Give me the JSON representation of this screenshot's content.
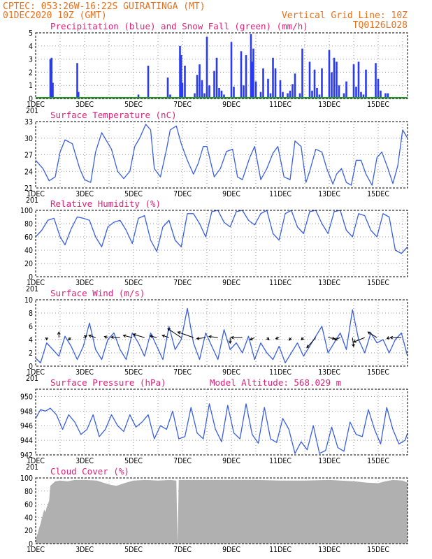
{
  "header": {
    "line1_left": "CPTEC:   053:26W-16:22S   GUIRATINGA (MT)",
    "line2_left": "01DEC2020 10Z (GMT)",
    "line2_right": "Vertical Grid Line: 10Z",
    "line3_right": "TQ0126L028"
  },
  "colors": {
    "header": "#e8701a",
    "panel_title": "#e0207a",
    "line": "#3a5fe0",
    "precip": "#2b3cf0",
    "snow": "#18a018",
    "cloud": "#b0b0b0"
  },
  "x_axis": {
    "range_days": [
      0,
      15.2
    ],
    "tick_labels": [
      "1DEC",
      "3DEC",
      "5DEC",
      "7DEC",
      "9DEC",
      "11DEC",
      "13DEC",
      "15DEC"
    ],
    "tick_days": [
      0,
      2,
      4,
      6,
      8,
      10,
      12,
      14
    ],
    "minor_label": "201"
  },
  "chart_data": [
    {
      "type": "bar",
      "title": "Precipitation (blue) and Snow Fall (green) (mm/h)",
      "ylim": [
        0,
        5
      ],
      "yticks": [
        "0",
        "1",
        "2",
        "3",
        "4",
        "5"
      ],
      "series": [
        {
          "name": "Precipitation",
          "color": "#2b3cf0",
          "x": [
            0.6,
            0.65,
            0.7,
            1.7,
            1.75,
            4.2,
            4.6,
            5.4,
            5.5,
            5.9,
            5.95,
            6.0,
            6.1,
            6.5,
            6.6,
            6.7,
            6.8,
            6.9,
            7.0,
            7.1,
            7.3,
            7.4,
            7.5,
            7.6,
            7.7,
            8.0,
            8.1,
            8.4,
            8.5,
            8.6,
            8.8,
            8.85,
            8.9,
            9.0,
            9.2,
            9.3,
            9.5,
            9.6,
            9.7,
            9.8,
            10.0,
            10.1,
            10.3,
            10.4,
            10.5,
            10.6,
            10.8,
            10.9,
            11.2,
            11.3,
            11.4,
            11.5,
            11.6,
            11.7,
            12.0,
            12.1,
            12.2,
            12.3,
            12.4,
            12.6,
            12.7,
            13.0,
            13.1,
            13.2,
            13.3,
            13.4,
            13.5,
            13.9,
            14.0,
            14.1,
            14.3,
            14.4
          ],
          "values": [
            3.0,
            3.1,
            1.2,
            2.7,
            0.5,
            0.3,
            2.5,
            1.6,
            0.3,
            4.0,
            3.3,
            1.2,
            2.5,
            0.4,
            1.8,
            2.6,
            1.4,
            0.4,
            4.7,
            1.0,
            2.1,
            3.1,
            0.8,
            0.6,
            0.3,
            4.3,
            0.9,
            3.6,
            1.0,
            3.3,
            4.9,
            2.8,
            3.8,
            1.3,
            0.5,
            2.3,
            1.5,
            0.4,
            3.1,
            2.3,
            1.4,
            0.5,
            0.4,
            0.6,
            1.1,
            1.9,
            0.4,
            3.8,
            2.8,
            0.6,
            2.2,
            0.8,
            0.3,
            2.3,
            3.7,
            2.0,
            3.1,
            2.8,
            1.0,
            0.4,
            1.3,
            2.6,
            0.9,
            2.8,
            0.5,
            0.3,
            2.2,
            2.7,
            1.5,
            0.6,
            0.4,
            0.4
          ]
        },
        {
          "name": "Snow Fall",
          "color": "#18a018",
          "x": [
            0,
            15.2
          ],
          "values": [
            0,
            0
          ]
        }
      ]
    },
    {
      "type": "line",
      "title": "Surface Temperature (nC)",
      "ylim": [
        21,
        33
      ],
      "yticks": [
        "21",
        "24",
        "27",
        "30",
        "33"
      ],
      "series": [
        {
          "name": "",
          "color": "#3a5fe0",
          "x": [
            0,
            0.3,
            0.55,
            0.8,
            1.0,
            1.2,
            1.5,
            1.8,
            2.0,
            2.25,
            2.45,
            2.7,
            2.9,
            3.1,
            3.35,
            3.6,
            3.85,
            4.05,
            4.25,
            4.5,
            4.7,
            4.85,
            5.1,
            5.35,
            5.5,
            5.75,
            5.95,
            6.2,
            6.45,
            6.65,
            6.85,
            7.0,
            7.3,
            7.55,
            7.8,
            8.05,
            8.25,
            8.45,
            8.75,
            8.95,
            9.2,
            9.45,
            9.7,
            9.9,
            10.15,
            10.4,
            10.6,
            10.85,
            11.05,
            11.2,
            11.45,
            11.7,
            11.9,
            12.15,
            12.3,
            12.5,
            12.7,
            12.9,
            13.1,
            13.3,
            13.5,
            13.75,
            13.95,
            14.15,
            14.4,
            14.6,
            14.8,
            15.0,
            15.2
          ],
          "values": [
            26,
            24.5,
            22.3,
            23,
            27.5,
            29.7,
            29,
            24.5,
            22.5,
            22,
            27.5,
            31,
            29.5,
            28,
            24,
            22.7,
            24,
            28.5,
            30,
            32.5,
            31.5,
            24.5,
            23,
            28,
            31.5,
            32.2,
            29,
            26,
            23.5,
            25.5,
            28.5,
            28.5,
            23,
            24.5,
            27.6,
            28,
            23,
            22.5,
            26.5,
            28.5,
            22.5,
            24.5,
            27.3,
            28.5,
            23,
            22.5,
            29.5,
            28.5,
            22,
            24,
            28,
            27.5,
            24.5,
            21.7,
            23.5,
            24.5,
            22,
            21.5,
            26,
            26,
            23.5,
            21.5,
            26.5,
            27.5,
            24.5,
            21.8,
            25,
            31.5,
            30
          ]
        }
      ]
    },
    {
      "type": "line",
      "title": "Relative Humidity (%)",
      "ylim": [
        0,
        100
      ],
      "yticks": [
        "0",
        "20",
        "40",
        "60",
        "80",
        "100"
      ],
      "series": [
        {
          "name": "",
          "color": "#3a5fe0",
          "x": [
            0,
            0.25,
            0.5,
            0.75,
            1.0,
            1.2,
            1.45,
            1.7,
            1.95,
            2.2,
            2.45,
            2.7,
            2.95,
            3.2,
            3.45,
            3.7,
            3.95,
            4.2,
            4.45,
            4.7,
            4.95,
            5.2,
            5.45,
            5.7,
            5.95,
            6.2,
            6.45,
            6.7,
            6.95,
            7.2,
            7.45,
            7.7,
            7.95,
            8.2,
            8.45,
            8.7,
            8.95,
            9.2,
            9.45,
            9.7,
            9.95,
            10.2,
            10.45,
            10.7,
            10.95,
            11.2,
            11.45,
            11.7,
            11.95,
            12.2,
            12.45,
            12.7,
            12.95,
            13.2,
            13.45,
            13.7,
            13.95,
            14.2,
            14.45,
            14.7,
            14.95,
            15.2
          ],
          "values": [
            60,
            70,
            85,
            88,
            60,
            48,
            72,
            90,
            88,
            85,
            60,
            45,
            75,
            82,
            85,
            70,
            50,
            88,
            92,
            55,
            38,
            75,
            85,
            55,
            45,
            95,
            95,
            80,
            60,
            98,
            100,
            82,
            75,
            98,
            100,
            85,
            78,
            95,
            100,
            65,
            55,
            95,
            100,
            75,
            65,
            98,
            100,
            80,
            65,
            98,
            100,
            70,
            60,
            95,
            92,
            70,
            60,
            95,
            90,
            40,
            35,
            45
          ]
        }
      ]
    },
    {
      "type": "line",
      "title": "Surface Wind (m/s)",
      "ylim": [
        0,
        10
      ],
      "yticks": [
        "0",
        "2",
        "4",
        "6",
        "8",
        "10"
      ],
      "series": [
        {
          "name": "",
          "color": "#3a5fe0",
          "x": [
            0,
            0.2,
            0.45,
            0.7,
            0.95,
            1.2,
            1.45,
            1.7,
            1.95,
            2.2,
            2.45,
            2.7,
            2.95,
            3.2,
            3.45,
            3.7,
            3.95,
            4.2,
            4.45,
            4.7,
            4.95,
            5.2,
            5.45,
            5.7,
            5.95,
            6.2,
            6.45,
            6.7,
            6.95,
            7.2,
            7.45,
            7.7,
            7.95,
            8.2,
            8.45,
            8.7,
            8.95,
            9.2,
            9.45,
            9.7,
            9.95,
            10.2,
            10.45,
            10.7,
            10.95,
            11.2,
            11.45,
            11.7,
            11.95,
            12.2,
            12.45,
            12.7,
            12.95,
            13.2,
            13.45,
            13.7,
            13.95,
            14.2,
            14.45,
            14.7,
            14.95,
            15.2
          ],
          "values": [
            1.2,
            0.5,
            3.5,
            2.5,
            1.5,
            4.5,
            3.0,
            1.0,
            3.0,
            6.5,
            2.5,
            1.0,
            4.0,
            5.0,
            2.5,
            1.0,
            5.0,
            3.5,
            1.5,
            5.0,
            3.0,
            1.0,
            6.0,
            2.5,
            4.0,
            8.7,
            3.5,
            1.0,
            5.0,
            3.0,
            1.0,
            5.5,
            2.5,
            3.5,
            2.0,
            4.5,
            1.0,
            3.5,
            2.0,
            1.0,
            3.0,
            0.5,
            2.0,
            3.5,
            1.5,
            3.0,
            4.5,
            6.0,
            2.0,
            3.5,
            5.0,
            2.5,
            8.5,
            4.0,
            2.0,
            5.0,
            3.5,
            4.0,
            2.0,
            4.0,
            5.0,
            1.5
          ]
        }
      ],
      "arrows": {
        "color": "#000000",
        "x": [
          0.45,
          0.95,
          1.45,
          1.95,
          2.45,
          2.95,
          3.45,
          3.95,
          4.45,
          4.95,
          5.45,
          5.95,
          6.45,
          6.95,
          7.45,
          7.95,
          8.45,
          8.95,
          9.45,
          9.95,
          10.45,
          10.95,
          11.45,
          11.95,
          12.45,
          12.95,
          13.45,
          13.95,
          14.45,
          14.95
        ],
        "u": [
          0,
          0,
          -1.2,
          1.5,
          -3,
          -1.5,
          -4,
          -4,
          -5,
          -3,
          -3,
          -6,
          -7,
          -4,
          -4,
          0,
          -5,
          -2,
          1,
          -1.5,
          -1,
          -1,
          -4,
          3,
          -2.5,
          0.5,
          -5,
          -4,
          -1,
          -5
        ],
        "v": [
          -1,
          2.5,
          -1,
          0.8,
          1,
          0.5,
          0.2,
          1,
          1.5,
          0.8,
          1,
          4,
          2.5,
          -0.5,
          0.5,
          -2.5,
          0,
          -1,
          -1,
          -0.5,
          -1.2,
          -1,
          -4.5,
          -0.5,
          -1,
          -4,
          -2,
          2.5,
          -0.5,
          0
        ]
      }
    },
    {
      "type": "line",
      "title": "Surface Pressure (hPa)",
      "annotation": "Model Altitude: 568.029 m",
      "ylim": [
        942,
        951
      ],
      "yticks": [
        "942",
        "944",
        "946",
        "948",
        "950"
      ],
      "series": [
        {
          "name": "",
          "color": "#3a5fe0",
          "x": [
            0,
            0.2,
            0.4,
            0.6,
            0.85,
            1.1,
            1.35,
            1.6,
            1.85,
            2.1,
            2.35,
            2.6,
            2.85,
            3.1,
            3.35,
            3.6,
            3.85,
            4.1,
            4.35,
            4.6,
            4.85,
            5.1,
            5.35,
            5.6,
            5.85,
            6.1,
            6.35,
            6.6,
            6.85,
            7.1,
            7.35,
            7.6,
            7.85,
            8.1,
            8.35,
            8.6,
            8.85,
            9.1,
            9.35,
            9.6,
            9.85,
            10.1,
            10.35,
            10.6,
            10.85,
            11.1,
            11.35,
            11.6,
            11.85,
            12.1,
            12.35,
            12.6,
            12.85,
            13.1,
            13.35,
            13.6,
            13.85,
            14.1,
            14.35,
            14.6,
            14.85,
            15.1,
            15.2
          ],
          "values": [
            947,
            948.2,
            948,
            948.4,
            947.5,
            945.5,
            947.5,
            946.5,
            944.8,
            945.5,
            947.5,
            944.5,
            945.5,
            947.5,
            946,
            945.2,
            947.5,
            945.8,
            946.5,
            947.5,
            944.2,
            946,
            945.5,
            948,
            944.2,
            944.5,
            948.5,
            945,
            944.2,
            949,
            945.5,
            943.8,
            948.8,
            945,
            944.2,
            949,
            944.8,
            943.6,
            948.5,
            944.2,
            943.7,
            947,
            945.5,
            942.2,
            943.8,
            942.7,
            946,
            942.2,
            942.6,
            945.8,
            943,
            942.5,
            946.5,
            944.8,
            944.5,
            948.2,
            945.5,
            943.5,
            948.5,
            945.5,
            943.5,
            944,
            945
          ]
        }
      ]
    },
    {
      "type": "area",
      "title": "Cloud Cover (%)",
      "ylim": [
        0,
        100
      ],
      "yticks": [
        "0",
        "20",
        "40",
        "60",
        "80",
        "100"
      ],
      "series": [
        {
          "name": "",
          "color": "#b0b0b0",
          "x": [
            0,
            0.05,
            0.1,
            0.15,
            0.2,
            0.25,
            0.3,
            0.35,
            0.4,
            0.45,
            0.5,
            0.55,
            0.6,
            0.8,
            1.0,
            1.3,
            1.6,
            2.0,
            2.5,
            3.0,
            3.3,
            3.7,
            4.0,
            4.5,
            5.0,
            5.5,
            5.75,
            5.8,
            5.85,
            6.0,
            6.5,
            7.0,
            8.0,
            9.0,
            10.0,
            11.0,
            12.0,
            13.0,
            13.5,
            14.0,
            14.3,
            14.6,
            15.0,
            15.2
          ],
          "values": [
            5,
            12,
            18,
            25,
            30,
            38,
            45,
            52,
            48,
            55,
            60,
            65,
            88,
            95,
            96,
            95,
            97,
            97,
            96,
            90,
            88,
            93,
            96,
            97,
            96,
            97,
            96,
            0,
            97,
            97,
            97,
            97,
            97,
            97,
            96,
            96,
            97,
            95,
            93,
            92,
            95,
            97,
            96,
            93
          ]
        }
      ]
    }
  ]
}
